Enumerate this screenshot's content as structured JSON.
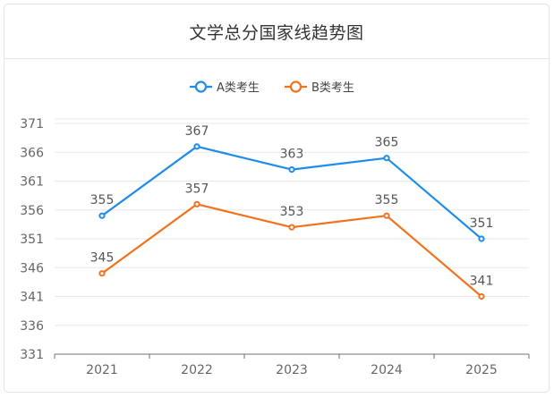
{
  "header": {
    "title": "文学总分国家线趋势图"
  },
  "chart_data": {
    "type": "line",
    "title": "文学总分国家线趋势图",
    "categories": [
      "2021",
      "2022",
      "2023",
      "2024",
      "2025"
    ],
    "series": [
      {
        "name": "A类考生",
        "values": [
          355,
          367,
          363,
          365,
          351
        ],
        "color": "#1f8ceb"
      },
      {
        "name": "B类考生",
        "values": [
          345,
          357,
          353,
          355,
          341
        ],
        "color": "#f07320"
      }
    ],
    "yticks": [
      331,
      336,
      341,
      346,
      351,
      356,
      361,
      366,
      371
    ],
    "ylim": [
      331,
      371
    ],
    "legend": "top-center",
    "grid": true
  }
}
